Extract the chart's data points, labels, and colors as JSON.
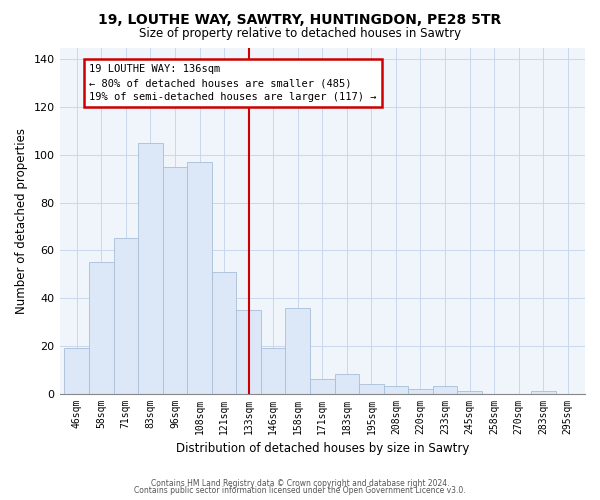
{
  "title1": "19, LOUTHE WAY, SAWTRY, HUNTINGDON, PE28 5TR",
  "title2": "Size of property relative to detached houses in Sawtry",
  "xlabel": "Distribution of detached houses by size in Sawtry",
  "ylabel": "Number of detached properties",
  "footer1": "Contains HM Land Registry data © Crown copyright and database right 2024.",
  "footer2": "Contains public sector information licensed under the Open Government Licence v3.0.",
  "bar_labels": [
    "46sqm",
    "58sqm",
    "71sqm",
    "83sqm",
    "96sqm",
    "108sqm",
    "121sqm",
    "133sqm",
    "146sqm",
    "158sqm",
    "171sqm",
    "183sqm",
    "195sqm",
    "208sqm",
    "220sqm",
    "233sqm",
    "245sqm",
    "258sqm",
    "270sqm",
    "283sqm",
    "295sqm"
  ],
  "bar_values": [
    19,
    55,
    65,
    105,
    95,
    97,
    51,
    35,
    19,
    36,
    6,
    8,
    4,
    3,
    2,
    3,
    1,
    0,
    0,
    1,
    0
  ],
  "bar_color": "#dce8f8",
  "bar_edge_color": "#a8bfd8",
  "vline_x_index": 7,
  "vline_color": "#cc0000",
  "annotation_text_line1": "19 LOUTHE WAY: 136sqm",
  "annotation_text_line2": "← 80% of detached houses are smaller (485)",
  "annotation_text_line3": "19% of semi-detached houses are larger (117) →",
  "annotation_box_color": "#cc0000",
  "annotation_fill_color": "#ffffff",
  "ylim": [
    0,
    145
  ],
  "yticks": [
    0,
    20,
    40,
    60,
    80,
    100,
    120,
    140
  ],
  "bin_width": 1
}
